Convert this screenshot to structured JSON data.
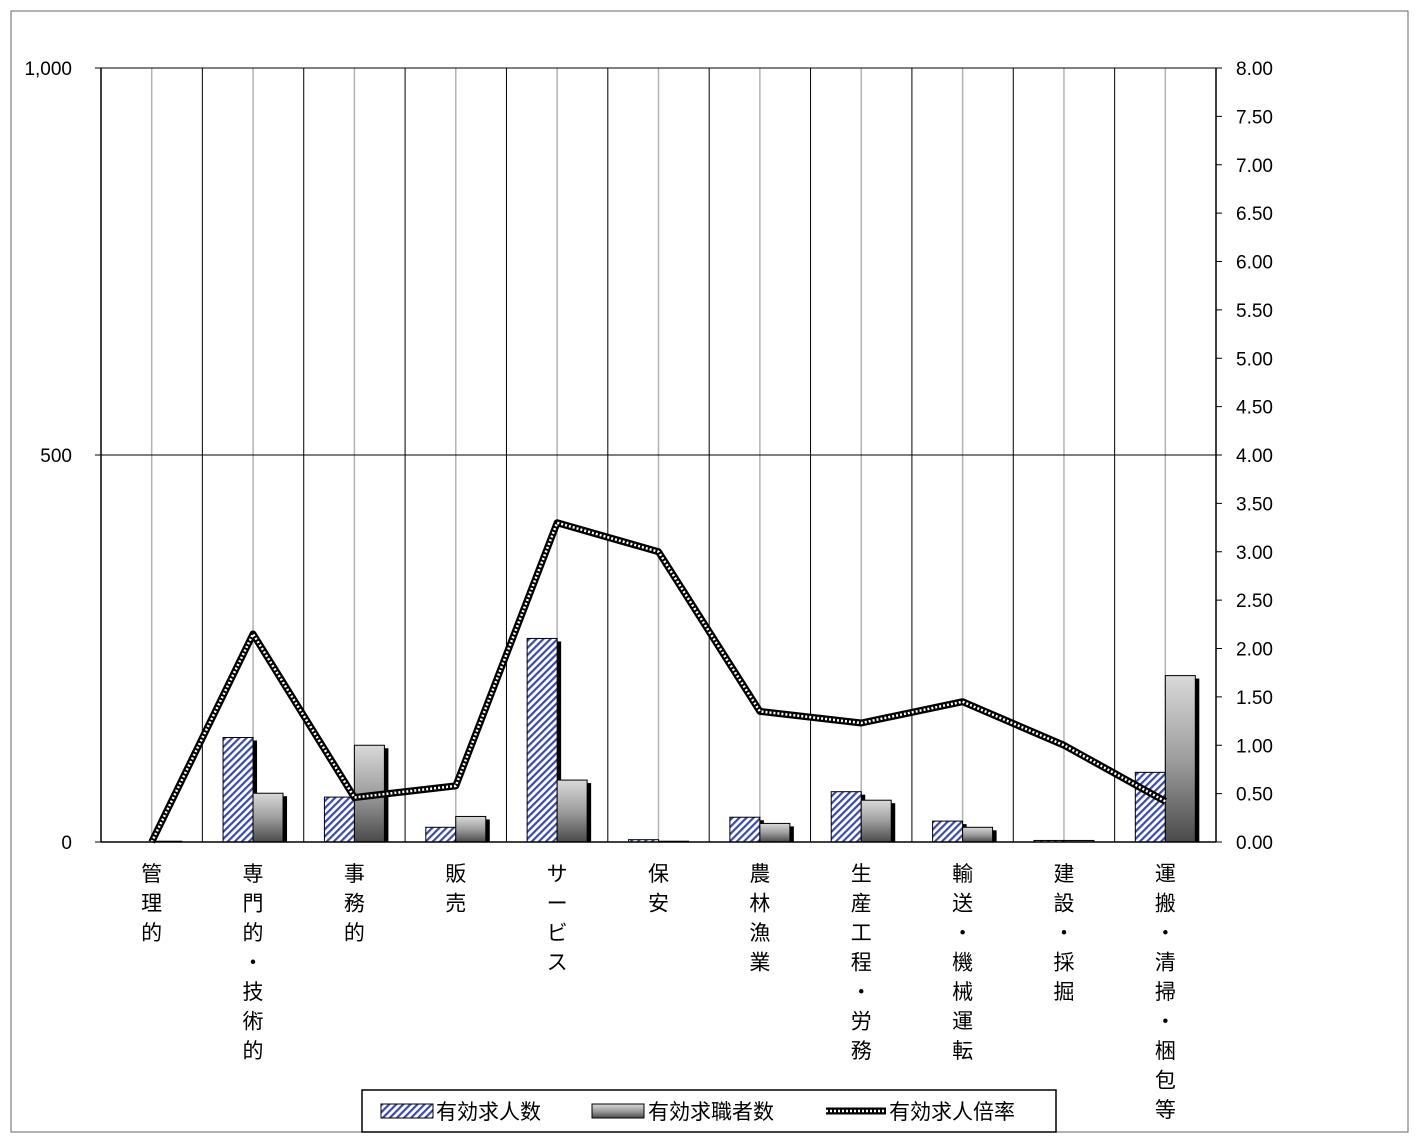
{
  "chart_data": {
    "type": "bar",
    "title": "",
    "categories": [
      "管理的",
      "専門的・技術的",
      "事務的",
      "販売",
      "サービス",
      "保安",
      "農林漁業",
      "生産工程・労務",
      "輸送・機械運転",
      "建設・採掘",
      "運搬・清掃・梱包等"
    ],
    "category_lines": [
      [
        "管",
        "理",
        "的"
      ],
      [
        "専",
        "門",
        "的",
        "・",
        "技",
        "術",
        "的"
      ],
      [
        "事",
        "務",
        "的"
      ],
      [
        "販",
        "売"
      ],
      [
        "サ",
        "ー",
        "ビ",
        "ス"
      ],
      [
        "保",
        "安"
      ],
      [
        "農",
        "林",
        "漁",
        "業"
      ],
      [
        "生",
        "産",
        "工",
        "程",
        "・",
        "労",
        "務"
      ],
      [
        "輸",
        "送",
        "・",
        "機",
        "械",
        "運",
        "転"
      ],
      [
        "建",
        "設",
        "・",
        "採",
        "掘"
      ],
      [
        "運",
        "搬",
        "・",
        "清",
        "掃",
        "・",
        "梱",
        "包",
        "等"
      ]
    ],
    "series": [
      {
        "name": "有効求人数",
        "type": "bar",
        "axis": "left",
        "color": "#3b4aa8",
        "pattern": "diagonal-hatch",
        "values": [
          0,
          135,
          58,
          19,
          263,
          3,
          32,
          65,
          27,
          2,
          90
        ]
      },
      {
        "name": "有効求職者数",
        "type": "bar",
        "axis": "left",
        "color": "#8c8c8c",
        "pattern": "gray-gradient",
        "values": [
          1,
          63,
          125,
          33,
          80,
          1,
          24,
          54,
          19,
          2,
          215
        ]
      },
      {
        "name": "有効求人倍率",
        "type": "line",
        "axis": "right",
        "color": "#000000",
        "pattern": "dotted-thick",
        "values": [
          0.0,
          2.15,
          0.46,
          0.58,
          3.3,
          3.0,
          1.35,
          1.23,
          1.45,
          1.0,
          0.42
        ]
      }
    ],
    "y_left": {
      "min": 0,
      "max": 1000,
      "ticks": [
        0,
        500,
        1000
      ],
      "tick_labels": [
        "0",
        "500",
        "1,000"
      ]
    },
    "y_right": {
      "min": 0,
      "max": 8,
      "ticks": [
        0,
        0.5,
        1,
        1.5,
        2,
        2.5,
        3,
        3.5,
        4,
        4.5,
        5,
        5.5,
        6,
        6.5,
        7,
        7.5,
        8
      ],
      "tick_labels": [
        "0.00",
        "0.50",
        "1.00",
        "1.50",
        "2.00",
        "2.50",
        "3.00",
        "3.50",
        "4.00",
        "4.50",
        "5.00",
        "5.50",
        "6.00",
        "6.50",
        "7.00",
        "7.50",
        "8.00"
      ]
    },
    "grid": true,
    "legend_position": "bottom"
  }
}
